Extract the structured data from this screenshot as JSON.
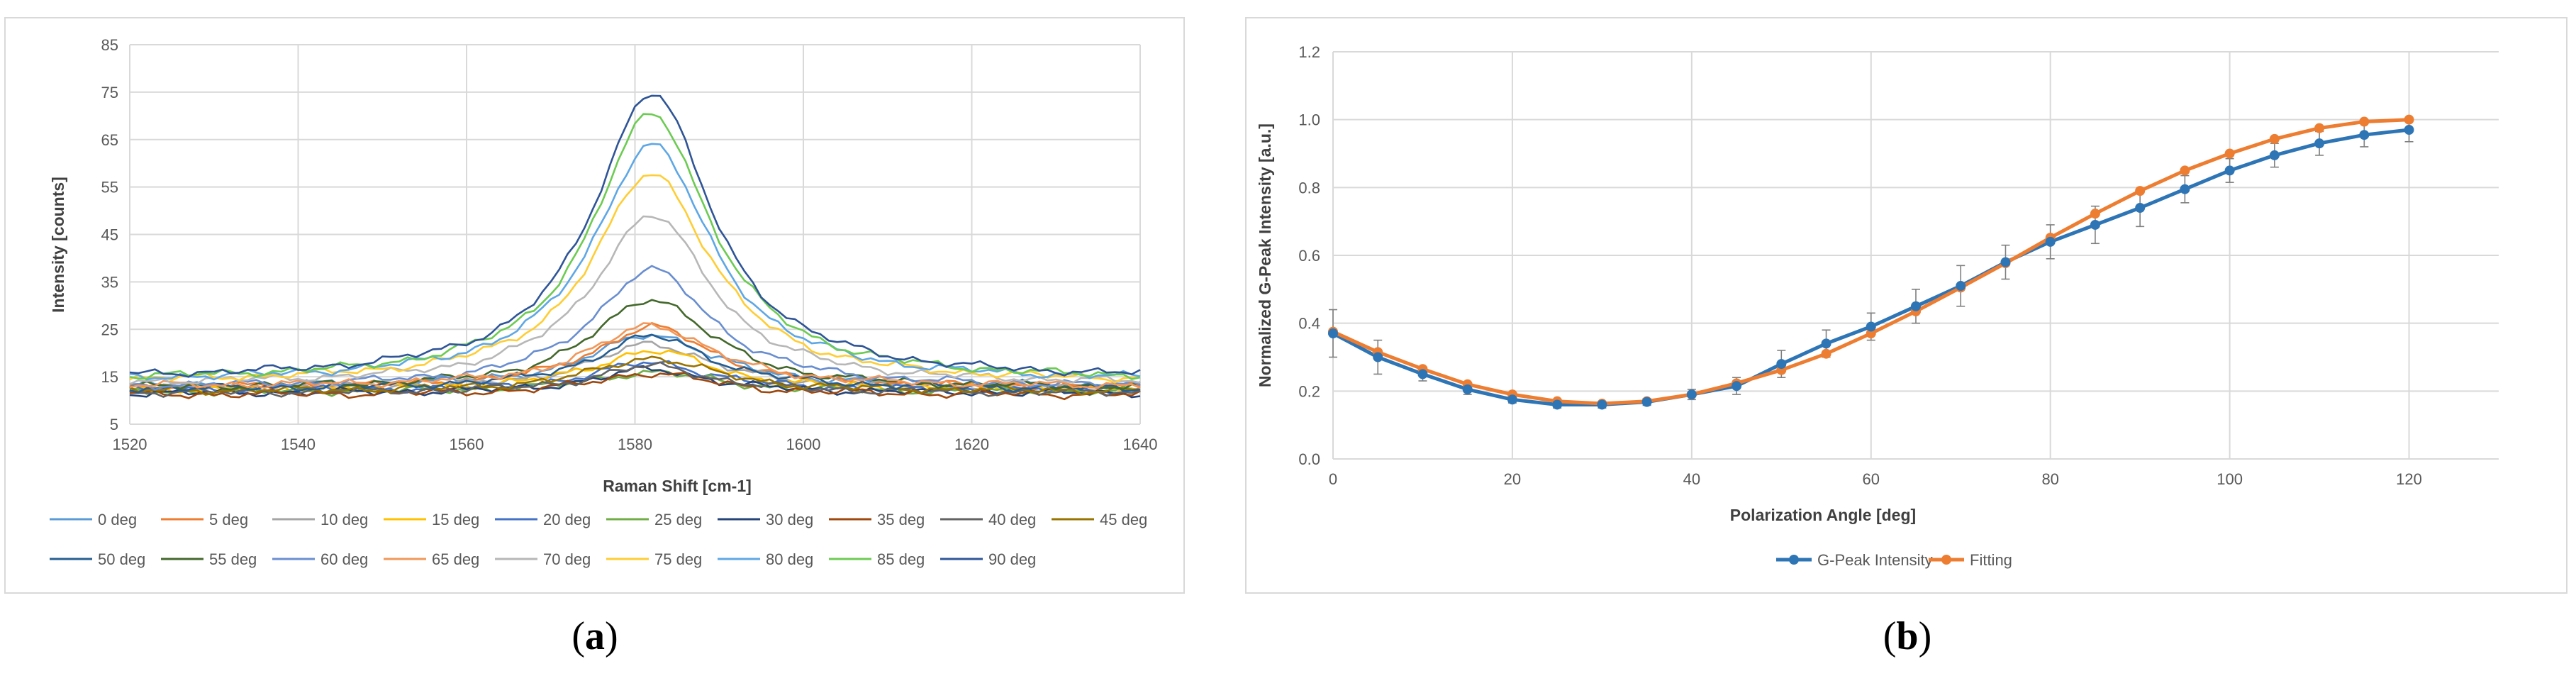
{
  "chart_data": [
    {
      "type": "line",
      "panel_label": "a",
      "title": "",
      "xlabel": "Raman Shift [cm-1]",
      "ylabel": "Intensity [counts]",
      "xlim": [
        1520,
        1640
      ],
      "ylim": [
        5,
        85
      ],
      "xticks": [
        1520,
        1540,
        1560,
        1580,
        1600,
        1620,
        1640
      ],
      "yticks": [
        5,
        15,
        25,
        35,
        45,
        55,
        65,
        75,
        85
      ],
      "grid": true,
      "legend_position": "bottom",
      "peak_center": 1582,
      "peak_width": 8.5,
      "x_step": 1,
      "series": [
        {
          "name": "0 deg",
          "color": "#5B9BD5",
          "baseline": 13.0,
          "peak": 24.0
        },
        {
          "name": "5 deg",
          "color": "#ED7D31",
          "baseline": 12.6,
          "peak": 25.5
        },
        {
          "name": "10 deg",
          "color": "#A5A5A5",
          "baseline": 12.4,
          "peak": 22.0
        },
        {
          "name": "15 deg",
          "color": "#FFC000",
          "baseline": 12.2,
          "peak": 20.5
        },
        {
          "name": "20 deg",
          "color": "#4472C4",
          "baseline": 12.0,
          "peak": 18.0
        },
        {
          "name": "25 deg",
          "color": "#70AD47",
          "baseline": 11.8,
          "peak": 16.0
        },
        {
          "name": "30 deg",
          "color": "#264478",
          "baseline": 11.5,
          "peak": 16.5
        },
        {
          "name": "35 deg",
          "color": "#9E480E",
          "baseline": 11.2,
          "peak": 15.8
        },
        {
          "name": "40 deg",
          "color": "#636363",
          "baseline": 11.6,
          "peak": 17.2
        },
        {
          "name": "45 deg",
          "color": "#997300",
          "baseline": 12.0,
          "peak": 19.0
        },
        {
          "name": "50 deg",
          "color": "#255E91",
          "baseline": 12.4,
          "peak": 23.5
        },
        {
          "name": "55 deg",
          "color": "#43682B",
          "baseline": 12.6,
          "peak": 31.5
        },
        {
          "name": "60 deg",
          "color": "#698ED0",
          "baseline": 12.8,
          "peak": 37.5
        },
        {
          "name": "65 deg",
          "color": "#F1975A",
          "baseline": 13.0,
          "peak": 26.0
        },
        {
          "name": "70 deg",
          "color": "#B7B7B7",
          "baseline": 13.4,
          "peak": 49.0
        },
        {
          "name": "75 deg",
          "color": "#FFCD33",
          "baseline": 13.8,
          "peak": 58.0
        },
        {
          "name": "80 deg",
          "color": "#5EA7E5",
          "baseline": 14.0,
          "peak": 64.0
        },
        {
          "name": "85 deg",
          "color": "#6CCB52",
          "baseline": 14.2,
          "peak": 70.5
        },
        {
          "name": "90 deg",
          "color": "#2F5597",
          "baseline": 14.5,
          "peak": 75.0
        }
      ]
    },
    {
      "type": "line",
      "panel_label": "b",
      "title": "",
      "xlabel": "Polarization  Angle [deg]",
      "ylabel": "Normalized G-Peak Intensity [a.u.]",
      "xlim": [
        0,
        130
      ],
      "ylim": [
        0,
        1.2
      ],
      "xticks": [
        0,
        20,
        40,
        60,
        80,
        100,
        120
      ],
      "yticks": [
        0.0,
        0.2,
        0.4,
        0.6,
        0.8,
        1.0,
        1.2
      ],
      "grid": true,
      "legend_position": "bottom",
      "x": [
        0,
        5,
        10,
        15,
        20,
        25,
        30,
        35,
        40,
        45,
        50,
        55,
        60,
        65,
        70,
        75,
        80,
        85,
        90,
        95,
        100,
        105,
        110,
        115,
        120
      ],
      "series": [
        {
          "name": "G-Peak Intensity",
          "color": "#2E75B6",
          "values": [
            0.37,
            0.3,
            0.25,
            0.205,
            0.175,
            0.16,
            0.16,
            0.168,
            0.19,
            0.215,
            0.28,
            0.34,
            0.39,
            0.45,
            0.51,
            0.58,
            0.64,
            0.69,
            0.74,
            0.795,
            0.85,
            0.895,
            0.93,
            0.955,
            0.97
          ],
          "error": [
            0.07,
            0.05,
            0.02,
            0.015,
            0.01,
            0.01,
            0.01,
            0.01,
            0.015,
            0.025,
            0.04,
            0.04,
            0.04,
            0.05,
            0.06,
            0.05,
            0.05,
            0.055,
            0.055,
            0.04,
            0.035,
            0.035,
            0.035,
            0.035,
            0.035
          ]
        },
        {
          "name": "Fitting",
          "color": "#ED7D31",
          "values": [
            0.375,
            0.315,
            0.265,
            0.22,
            0.19,
            0.17,
            0.163,
            0.17,
            0.19,
            0.223,
            0.262,
            0.31,
            0.37,
            0.435,
            0.505,
            0.577,
            0.652,
            0.723,
            0.79,
            0.85,
            0.9,
            0.943,
            0.975,
            0.994,
            1.0
          ]
        }
      ]
    }
  ],
  "captions": {
    "a": "a",
    "b": "b"
  }
}
